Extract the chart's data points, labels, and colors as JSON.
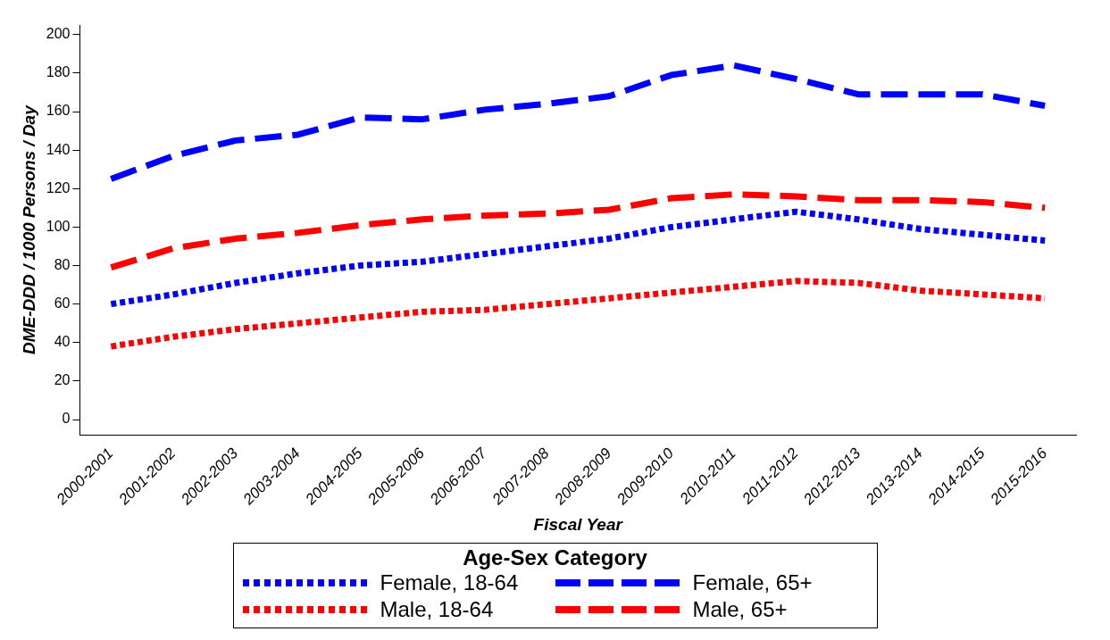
{
  "chart_data": {
    "type": "line",
    "xlabel": "Fiscal Year",
    "ylabel": "DME-DDD / 1000 Persons / Day",
    "legend_title": "Age-Sex Category",
    "legend": "bottom",
    "grid": false,
    "marker": "none",
    "ylim": [
      -8,
      205
    ],
    "yticks": [
      0,
      20,
      40,
      60,
      80,
      100,
      120,
      140,
      160,
      180,
      200
    ],
    "categories": [
      "2000-2001",
      "2001-2002",
      "2002-2003",
      "2003-2004",
      "2004-2005",
      "2005-2006",
      "2006-2007",
      "2007-2008",
      "2008-2009",
      "2009-2010",
      "2010-2011",
      "2011-2012",
      "2012-2013",
      "2013-2014",
      "2014-2015",
      "2015-2016"
    ],
    "series": [
      {
        "name": "Female, 18-64",
        "color": "#0000ff",
        "line_style": "dotted",
        "values": [
          60,
          65,
          71,
          76,
          80,
          82,
          86,
          90,
          94,
          100,
          104,
          108,
          104,
          99,
          96,
          93
        ]
      },
      {
        "name": "Female, 65+",
        "color": "#0000ff",
        "line_style": "dashed",
        "values": [
          125,
          137,
          145,
          148,
          157,
          156,
          161,
          164,
          168,
          179,
          184,
          177,
          169,
          169,
          169,
          163
        ]
      },
      {
        "name": "Male, 18-64",
        "color": "#ff0000",
        "line_style": "dotted",
        "values": [
          38,
          43,
          47,
          50,
          53,
          56,
          57,
          60,
          63,
          66,
          69,
          72,
          71,
          67,
          65,
          63
        ]
      },
      {
        "name": "Male, 65+",
        "color": "#ff0000",
        "line_style": "dashed",
        "values": [
          79,
          89,
          94,
          97,
          101,
          104,
          106,
          107,
          109,
          115,
          117,
          116,
          114,
          114,
          113,
          110
        ]
      }
    ]
  }
}
